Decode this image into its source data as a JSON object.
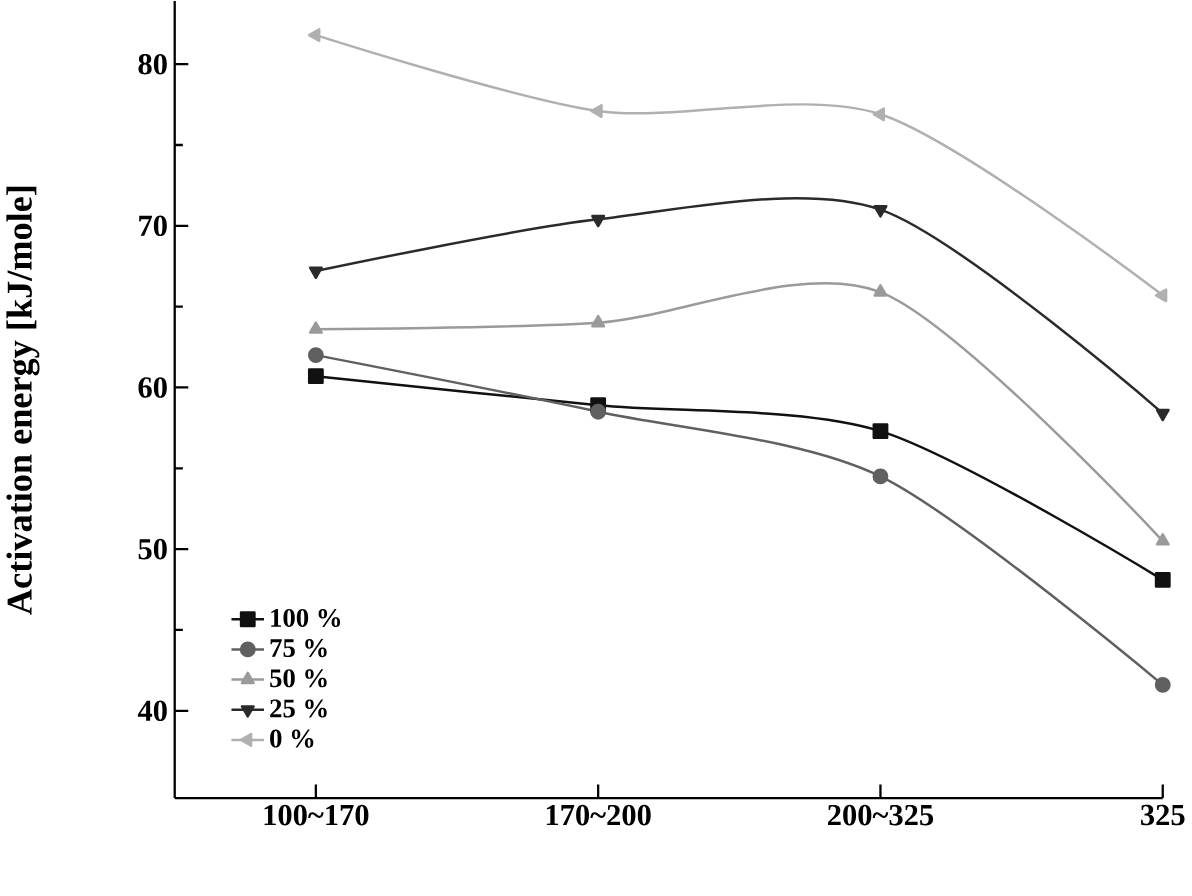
{
  "chart_data": {
    "type": "line",
    "ylabel": "Activation energy [kJ/mole]",
    "categories": [
      "100~170",
      "170~200",
      "200~325",
      "325"
    ],
    "ylim": [
      34.6,
      83.9
    ],
    "yticks": [
      40,
      50,
      60,
      70,
      80
    ],
    "grid": false,
    "legend": "bottom left",
    "series": [
      {
        "name": "100 %",
        "color": "#111111",
        "marker": "square",
        "values": [
          60.7,
          58.9,
          57.3,
          48.1
        ]
      },
      {
        "name": "75 %",
        "color": "#606060",
        "marker": "circle",
        "values": [
          62.0,
          58.5,
          54.5,
          41.6
        ]
      },
      {
        "name": "50 %",
        "color": "#9a9a9a",
        "marker": "triangle",
        "values": [
          63.6,
          64.0,
          65.9,
          50.5
        ]
      },
      {
        "name": "25 %",
        "color": "#2a2a2a",
        "marker": "triangle down",
        "values": [
          67.2,
          70.4,
          71.0,
          58.4
        ]
      },
      {
        "name": "0 %",
        "color": "#b0b0b0",
        "marker": "triangle left",
        "values": [
          81.8,
          77.1,
          76.9,
          65.7
        ]
      }
    ]
  }
}
